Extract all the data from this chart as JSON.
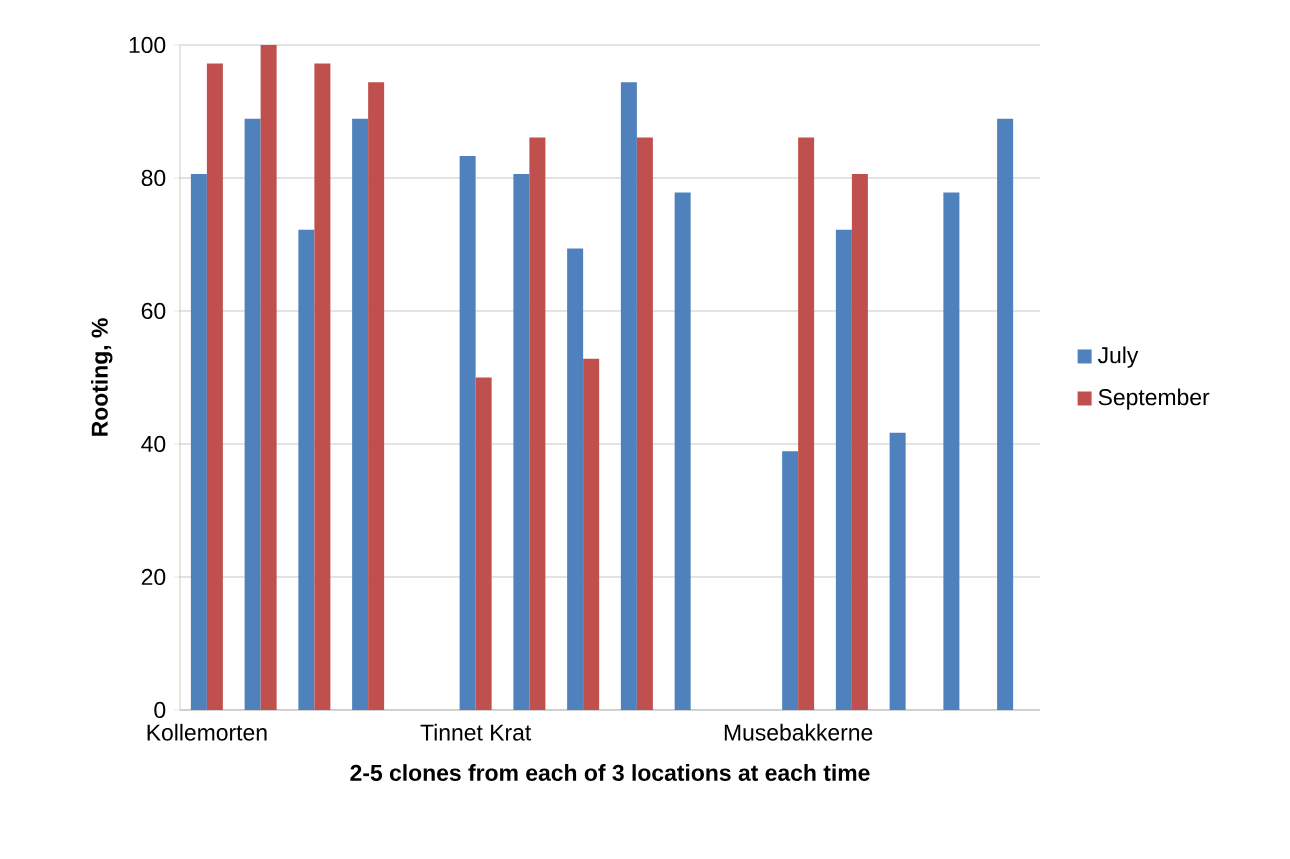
{
  "chart_data": {
    "type": "bar",
    "xlabel": "2-5 clones from each of 3 locations at each time",
    "ylabel": "Rooting, %",
    "categories": [
      "Kollemorten",
      null,
      null,
      null,
      null,
      "Tinnet Krat",
      null,
      null,
      null,
      null,
      null,
      "Musebakkerne",
      null,
      null,
      null,
      null
    ],
    "series": [
      {
        "name": "July",
        "color": "#4f81bd",
        "values": [
          80.6,
          88.9,
          72.2,
          88.9,
          null,
          83.3,
          80.6,
          69.4,
          94.4,
          77.8,
          null,
          38.9,
          72.2,
          41.7,
          77.8,
          88.9
        ]
      },
      {
        "name": "September",
        "color": "#c0504d",
        "values": [
          97.2,
          100,
          97.2,
          94.4,
          null,
          50,
          86.1,
          52.8,
          86.1,
          null,
          null,
          86.1,
          80.6,
          null,
          null,
          null
        ]
      }
    ],
    "ylim": [
      0,
      100
    ],
    "yticks": [
      0,
      20,
      40,
      60,
      80,
      100
    ],
    "grid": "y",
    "legend": "right"
  }
}
